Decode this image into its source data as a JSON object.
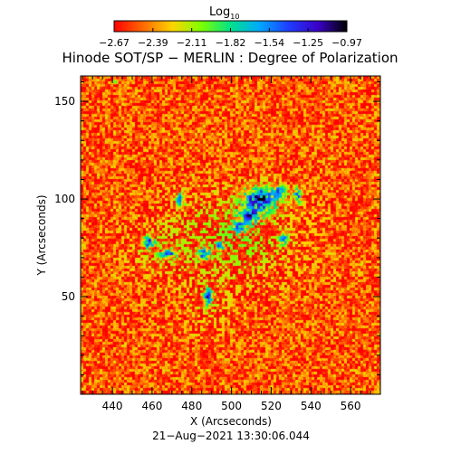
{
  "chart_data": {
    "type": "heatmap",
    "title": "Hinode SOT/SP − MERLIN : Degree of Polarization",
    "colorbar": {
      "label_main": "Log",
      "label_sub": "10",
      "ticks": [
        "−2.67",
        "−2.39",
        "−2.11",
        "−1.82",
        "−1.54",
        "−1.25",
        "−0.97"
      ],
      "range": [
        -2.67,
        -0.97
      ],
      "colormap": "rainbow",
      "stops": [
        "#ff0000",
        "#ff6a00",
        "#ffd400",
        "#7cff00",
        "#00e28a",
        "#00a8ff",
        "#1f3cff",
        "#3a00c8",
        "#000000"
      ]
    },
    "xlabel": "X (Arcseconds)",
    "ylabel": "Y (Arcseconds)",
    "xlim": [
      424,
      575
    ],
    "ylim": [
      0,
      163
    ],
    "x_ticks": [
      440,
      460,
      480,
      500,
      520,
      540,
      560
    ],
    "y_ticks": [
      50,
      100,
      150
    ],
    "timestamp": "21−Aug−2021 13:30:06.044",
    "background_level": -2.5,
    "active_regions": [
      {
        "x": 514,
        "y": 100,
        "sx": 8,
        "sy": 6,
        "peak": -1.05
      },
      {
        "x": 509,
        "y": 92,
        "sx": 5,
        "sy": 4,
        "peak": -1.15
      },
      {
        "x": 524,
        "y": 104,
        "sx": 3,
        "sy": 3,
        "peak": -1.3
      },
      {
        "x": 504,
        "y": 86,
        "sx": 3,
        "sy": 3,
        "peak": -1.35
      },
      {
        "x": 458,
        "y": 78,
        "sx": 3,
        "sy": 3,
        "peak": -1.25
      },
      {
        "x": 468,
        "y": 72,
        "sx": 4,
        "sy": 2,
        "peak": -1.3
      },
      {
        "x": 486,
        "y": 72,
        "sx": 3,
        "sy": 3,
        "peak": -1.3
      },
      {
        "x": 488,
        "y": 50,
        "sx": 2,
        "sy": 4,
        "peak": -1.2
      },
      {
        "x": 474,
        "y": 100,
        "sx": 2,
        "sy": 3,
        "peak": -1.3
      },
      {
        "x": 533,
        "y": 102,
        "sx": 2,
        "sy": 4,
        "peak": -1.35
      },
      {
        "x": 526,
        "y": 80,
        "sx": 2,
        "sy": 3,
        "peak": -1.4
      },
      {
        "x": 441,
        "y": 160,
        "sx": 1,
        "sy": 1,
        "peak": -1.4
      },
      {
        "x": 494,
        "y": 76,
        "sx": 2,
        "sy": 2,
        "peak": -1.35
      }
    ],
    "network_regions": [
      {
        "x": 500,
        "y": 80,
        "sx": 30,
        "sy": 22,
        "level": -2.0
      },
      {
        "x": 470,
        "y": 75,
        "sx": 22,
        "sy": 12,
        "level": -2.1
      },
      {
        "x": 488,
        "y": 50,
        "sx": 12,
        "sy": 20,
        "level": -2.15
      },
      {
        "x": 540,
        "y": 90,
        "sx": 10,
        "sy": 18,
        "level": -2.25
      }
    ]
  }
}
